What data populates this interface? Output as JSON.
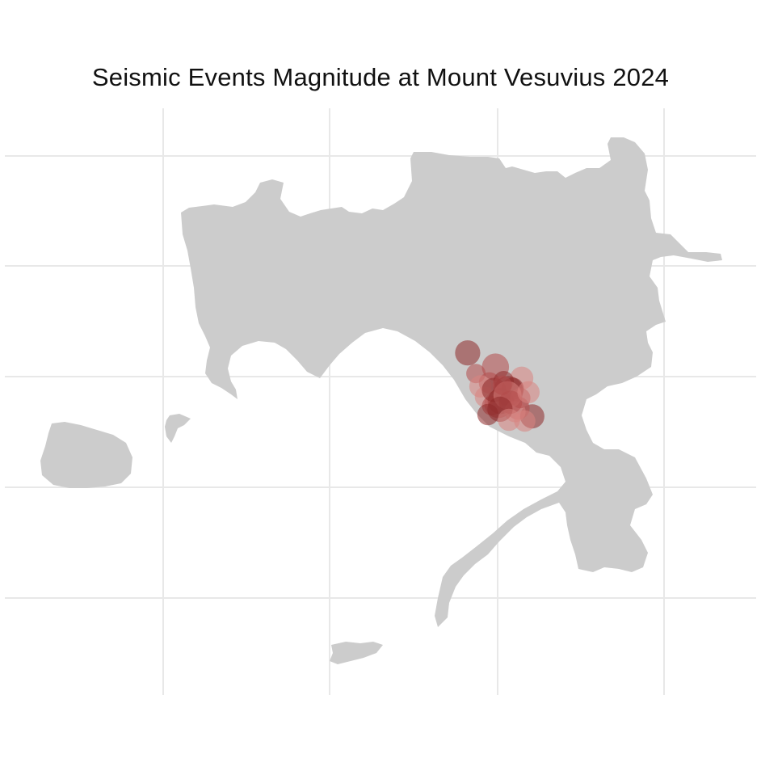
{
  "chart_data": {
    "type": "scatter",
    "title": "Seismic Events Magnitude at Mount Vesuvius 2024",
    "xlabel": "",
    "ylabel": "",
    "grid": true,
    "legend": "none",
    "region": "Bay of Naples (Campania)",
    "xlim": [
      0,
      100
    ],
    "ylim": [
      0,
      100
    ],
    "colors": {
      "land": "#cccccc",
      "grid": "#e8e8e8",
      "point": "#b24a4a",
      "point_dark": "#8e2a2a",
      "point_light": "#d9847f",
      "background": "#ffffff"
    },
    "series": [
      {
        "x": [
          61.6,
          65.3,
          68.8,
          70.2,
          64.5,
          66.7,
          67.0,
          65.7,
          63.9,
          67.6,
          68.3,
          69.2,
          66.0,
          64.8,
          67.9,
          66.4,
          62.7,
          63.3,
          65.1,
          68.6,
          66.9,
          64.3,
          67.3,
          69.7,
          65.9,
          66.2,
          67.1
        ],
        "y": [
          58.3,
          55.9,
          54.0,
          47.5,
          53.2,
          51.4,
          51.8,
          49.6,
          50.8,
          52.2,
          48.9,
          46.7,
          50.1,
          49.3,
          48.3,
          53.5,
          54.8,
          52.6,
          52.0,
          50.6,
          51.1,
          47.8,
          49.9,
          51.6,
          48.7,
          52.8,
          46.9
        ],
        "magnitude": [
          1.6,
          1.8,
          1.4,
          1.5,
          1.2,
          1.3,
          2.1,
          1.9,
          1.1,
          1.3,
          1.4,
          1.2,
          1.7,
          1.0,
          1.2,
          1.1,
          1.0,
          1.3,
          1.5,
          1.1,
          1.9,
          1.2,
          1.4,
          1.3,
          1.6,
          1.0,
          1.3
        ]
      }
    ]
  }
}
